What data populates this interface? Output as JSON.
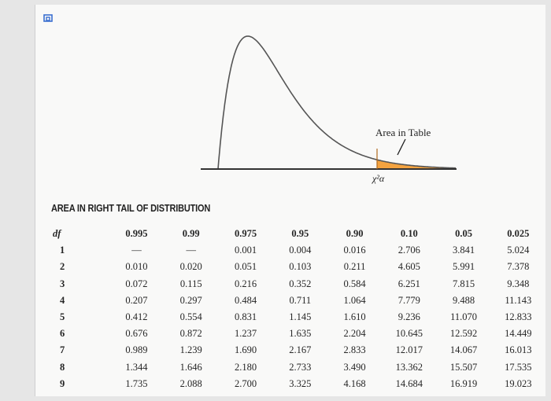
{
  "diagram": {
    "area_label": "Area in Table",
    "chi_label": "χ²α",
    "colors": {
      "shade": "#f4a340",
      "curve": "#555555",
      "axis": "#333333"
    }
  },
  "section_title": "AREA IN RIGHT TAIL OF DISTRIBUTION",
  "table": {
    "df_header": "df",
    "headers": [
      "0.995",
      "0.99",
      "0.975",
      "0.95",
      "0.90",
      "0.10",
      "0.05",
      "0.025"
    ],
    "rows": [
      {
        "df": "1",
        "cells": [
          "—",
          "—",
          "0.001",
          "0.004",
          "0.016",
          "2.706",
          "3.841",
          "5.024"
        ]
      },
      {
        "df": "2",
        "cells": [
          "0.010",
          "0.020",
          "0.051",
          "0.103",
          "0.211",
          "4.605",
          "5.991",
          "7.378"
        ]
      },
      {
        "df": "3",
        "cells": [
          "0.072",
          "0.115",
          "0.216",
          "0.352",
          "0.584",
          "6.251",
          "7.815",
          "9.348"
        ]
      },
      {
        "df": "4",
        "cells": [
          "0.207",
          "0.297",
          "0.484",
          "0.711",
          "1.064",
          "7.779",
          "9.488",
          "11.143"
        ]
      },
      {
        "df": "5",
        "cells": [
          "0.412",
          "0.554",
          "0.831",
          "1.145",
          "1.610",
          "9.236",
          "11.070",
          "12.833"
        ]
      },
      {
        "df": "6",
        "cells": [
          "0.676",
          "0.872",
          "1.237",
          "1.635",
          "2.204",
          "10.645",
          "12.592",
          "14.449"
        ]
      },
      {
        "df": "7",
        "cells": [
          "0.989",
          "1.239",
          "1.690",
          "2.167",
          "2.833",
          "12.017",
          "14.067",
          "16.013"
        ]
      },
      {
        "df": "8",
        "cells": [
          "1.344",
          "1.646",
          "2.180",
          "2.733",
          "3.490",
          "13.362",
          "15.507",
          "17.535"
        ]
      },
      {
        "df": "9",
        "cells": [
          "1.735",
          "2.088",
          "2.700",
          "3.325",
          "4.168",
          "14.684",
          "16.919",
          "19.023"
        ]
      }
    ]
  }
}
